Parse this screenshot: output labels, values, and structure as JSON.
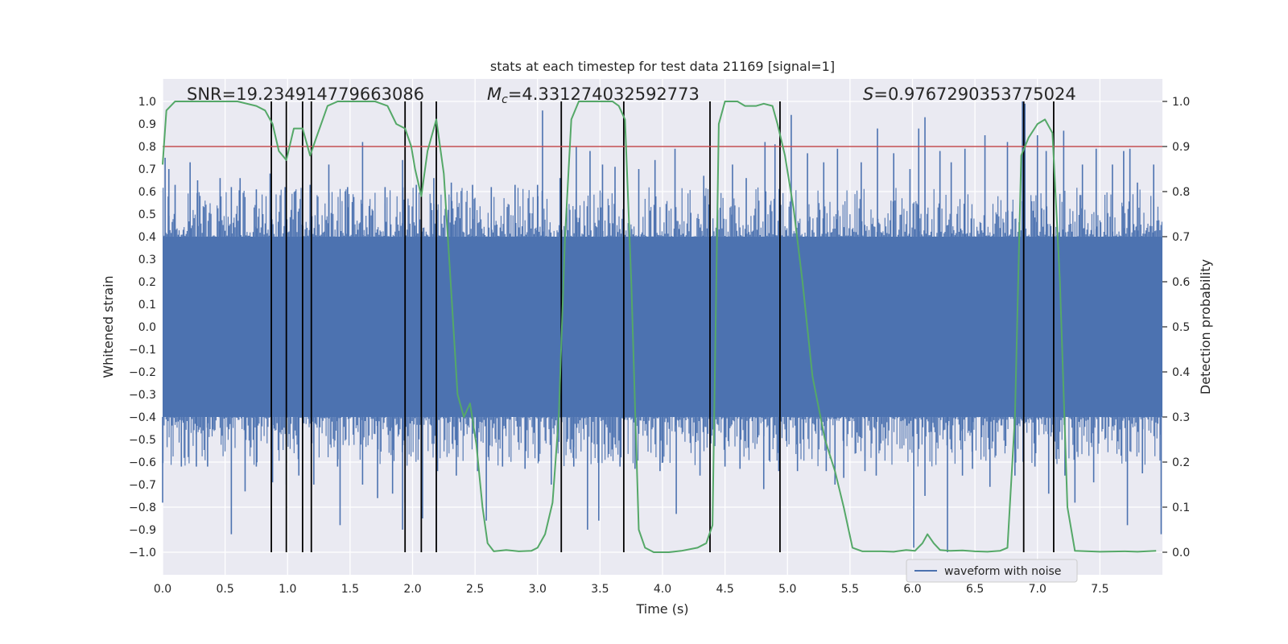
{
  "chart_data": {
    "type": "line",
    "title": "stats at each timestep for test data 21169 [signal=1]",
    "xlabel": "Time (s)",
    "ylabel_left": "Whitened strain",
    "ylabel_right": "Detection probability",
    "xlim": [
      0.0,
      8.0
    ],
    "ylim_left": [
      -1.1,
      1.1
    ],
    "ylim_right": [
      -0.05,
      1.05
    ],
    "x_ticks": [
      "0.0",
      "0.5",
      "1.0",
      "1.5",
      "2.0",
      "2.5",
      "3.0",
      "3.5",
      "4.0",
      "4.5",
      "5.0",
      "5.5",
      "6.0",
      "6.5",
      "7.0",
      "7.5"
    ],
    "y_ticks_left": [
      "1.0",
      "0.9",
      "0.8",
      "0.7",
      "0.6",
      "0.5",
      "0.4",
      "0.3",
      "0.2",
      "0.1",
      "0.0",
      "−0.1",
      "−0.2",
      "−0.3",
      "−0.4",
      "−0.5",
      "−0.6",
      "−0.7",
      "−0.8",
      "−0.9",
      "−1.0"
    ],
    "y_ticks_right": [
      "1.0",
      "0.9",
      "0.8",
      "0.7",
      "0.6",
      "0.5",
      "0.4",
      "0.3",
      "0.2",
      "0.1",
      "0.0"
    ],
    "stats": {
      "snr_label": "SNR=19.234914779663086",
      "mc_symbol": "M",
      "mc_sub": "c",
      "mc_value": "=4.331274032592773",
      "s_symbol": "S",
      "s_value": "=0.9767290353775024"
    },
    "legend": {
      "label": "waveform with noise",
      "placement": "lower-right"
    },
    "threshold": {
      "value": 0.9,
      "axis": "right",
      "color": "#c44e52"
    },
    "vlines_x": [
      0.87,
      0.99,
      1.12,
      1.19,
      1.94,
      2.07,
      2.19,
      3.19,
      3.69,
      4.38,
      4.94,
      6.89,
      7.13
    ],
    "waveform": {
      "name": "waveform with noise",
      "color": "#4c72b0",
      "noise_band": [
        -0.4,
        0.4
      ],
      "spike_up": [
        [
          0.02,
          0.75
        ],
        [
          0.05,
          0.7
        ],
        [
          0.1,
          0.63
        ],
        [
          0.22,
          0.73
        ],
        [
          0.28,
          0.65
        ],
        [
          0.46,
          0.66
        ],
        [
          0.55,
          0.62
        ],
        [
          0.62,
          0.66
        ],
        [
          0.75,
          0.61
        ],
        [
          0.86,
          0.68
        ],
        [
          0.98,
          0.62
        ],
        [
          1.18,
          0.63
        ],
        [
          1.33,
          0.72
        ],
        [
          1.48,
          0.62
        ],
        [
          1.6,
          0.82
        ],
        [
          1.78,
          0.62
        ],
        [
          1.92,
          0.74
        ],
        [
          2.03,
          0.63
        ],
        [
          2.17,
          0.66
        ],
        [
          2.31,
          0.64
        ],
        [
          2.48,
          0.63
        ],
        [
          2.63,
          0.62
        ],
        [
          2.82,
          0.63
        ],
        [
          3.0,
          0.63
        ],
        [
          3.04,
          0.96
        ],
        [
          3.18,
          0.66
        ],
        [
          3.31,
          0.8
        ],
        [
          3.42,
          0.78
        ],
        [
          3.52,
          0.72
        ],
        [
          3.62,
          0.71
        ],
        [
          3.81,
          0.7
        ],
        [
          3.94,
          0.74
        ],
        [
          4.1,
          0.79
        ],
        [
          4.33,
          0.67
        ],
        [
          4.56,
          0.72
        ],
        [
          4.67,
          0.66
        ],
        [
          4.82,
          0.82
        ],
        [
          4.9,
          0.81
        ],
        [
          5.03,
          0.94
        ],
        [
          5.16,
          0.77
        ],
        [
          5.29,
          0.73
        ],
        [
          5.4,
          0.79
        ],
        [
          5.59,
          0.73
        ],
        [
          5.72,
          0.88
        ],
        [
          5.85,
          0.77
        ],
        [
          5.98,
          0.7
        ],
        [
          6.05,
          0.88
        ],
        [
          6.1,
          0.93
        ],
        [
          6.22,
          0.78
        ],
        [
          6.31,
          0.73
        ],
        [
          6.42,
          0.79
        ],
        [
          6.58,
          0.85
        ],
        [
          6.76,
          0.82
        ],
        [
          6.88,
          1.0
        ],
        [
          6.9,
          0.99
        ],
        [
          7.0,
          0.85
        ],
        [
          7.07,
          0.78
        ],
        [
          7.21,
          0.87
        ],
        [
          7.36,
          0.72
        ],
        [
          7.47,
          0.79
        ],
        [
          7.6,
          0.72
        ],
        [
          7.69,
          0.78
        ],
        [
          7.74,
          0.79
        ],
        [
          7.8,
          0.64
        ],
        [
          7.93,
          0.72
        ]
      ],
      "spike_down": [
        [
          0.0,
          -0.78
        ],
        [
          0.15,
          -0.62
        ],
        [
          0.27,
          -0.62
        ],
        [
          0.36,
          -0.62
        ],
        [
          0.55,
          -0.92
        ],
        [
          0.66,
          -0.73
        ],
        [
          0.75,
          -0.62
        ],
        [
          0.88,
          -0.69
        ],
        [
          0.99,
          -0.7
        ],
        [
          1.09,
          -0.66
        ],
        [
          1.21,
          -0.7
        ],
        [
          1.4,
          -0.62
        ],
        [
          1.42,
          -0.88
        ],
        [
          1.6,
          -0.7
        ],
        [
          1.72,
          -0.76
        ],
        [
          1.84,
          -0.74
        ],
        [
          1.92,
          -0.9
        ],
        [
          1.94,
          -0.78
        ],
        [
          2.08,
          -0.85
        ],
        [
          2.2,
          -0.64
        ],
        [
          2.35,
          -0.66
        ],
        [
          2.52,
          -0.64
        ],
        [
          2.59,
          -0.86
        ],
        [
          2.72,
          -0.62
        ],
        [
          2.9,
          -0.63
        ],
        [
          3.11,
          -0.7
        ],
        [
          3.29,
          -0.62
        ],
        [
          3.4,
          -0.9
        ],
        [
          3.49,
          -0.86
        ],
        [
          3.66,
          -0.62
        ],
        [
          3.78,
          -0.63
        ],
        [
          3.98,
          -0.64
        ],
        [
          4.11,
          -0.83
        ],
        [
          4.3,
          -0.66
        ],
        [
          4.5,
          -0.62
        ],
        [
          4.62,
          -0.63
        ],
        [
          4.81,
          -0.72
        ],
        [
          4.93,
          -0.64
        ],
        [
          5.08,
          -0.64
        ],
        [
          5.31,
          -0.64
        ],
        [
          5.38,
          -0.7
        ],
        [
          5.45,
          -0.67
        ],
        [
          5.62,
          -0.64
        ],
        [
          5.71,
          -0.66
        ],
        [
          6.01,
          -0.98
        ],
        [
          6.1,
          -0.75
        ],
        [
          6.28,
          -1.0
        ],
        [
          6.4,
          -0.66
        ],
        [
          6.48,
          -0.63
        ],
        [
          6.62,
          -0.71
        ],
        [
          6.82,
          -0.66
        ],
        [
          6.98,
          -0.62
        ],
        [
          7.09,
          -0.74
        ],
        [
          7.22,
          -0.66
        ],
        [
          7.3,
          -0.78
        ],
        [
          7.45,
          -0.69
        ],
        [
          7.72,
          -0.88
        ],
        [
          7.84,
          -0.65
        ],
        [
          7.99,
          -0.92
        ]
      ]
    },
    "probability": {
      "name": "detection probability",
      "color": "#55a868",
      "axis": "right",
      "points": [
        [
          0.0,
          0.86
        ],
        [
          0.03,
          0.98
        ],
        [
          0.1,
          1.0
        ],
        [
          0.3,
          1.0
        ],
        [
          0.6,
          1.0
        ],
        [
          0.75,
          0.99
        ],
        [
          0.82,
          0.98
        ],
        [
          0.88,
          0.95
        ],
        [
          0.93,
          0.89
        ],
        [
          0.99,
          0.87
        ],
        [
          1.05,
          0.94
        ],
        [
          1.12,
          0.94
        ],
        [
          1.18,
          0.88
        ],
        [
          1.23,
          0.92
        ],
        [
          1.32,
          0.99
        ],
        [
          1.4,
          1.0
        ],
        [
          1.7,
          1.0
        ],
        [
          1.8,
          0.99
        ],
        [
          1.87,
          0.95
        ],
        [
          1.94,
          0.94
        ],
        [
          1.99,
          0.9
        ],
        [
          2.02,
          0.85
        ],
        [
          2.07,
          0.79
        ],
        [
          2.12,
          0.89
        ],
        [
          2.19,
          0.96
        ],
        [
          2.25,
          0.84
        ],
        [
          2.3,
          0.62
        ],
        [
          2.36,
          0.35
        ],
        [
          2.41,
          0.3
        ],
        [
          2.46,
          0.33
        ],
        [
          2.51,
          0.24
        ],
        [
          2.56,
          0.1
        ],
        [
          2.6,
          0.02
        ],
        [
          2.65,
          0.002
        ],
        [
          2.75,
          0.005
        ],
        [
          2.85,
          0.002
        ],
        [
          2.95,
          0.003
        ],
        [
          3.0,
          0.01
        ],
        [
          3.06,
          0.04
        ],
        [
          3.12,
          0.11
        ],
        [
          3.17,
          0.3
        ],
        [
          3.22,
          0.7
        ],
        [
          3.27,
          0.96
        ],
        [
          3.33,
          1.0
        ],
        [
          3.5,
          1.0
        ],
        [
          3.6,
          1.0
        ],
        [
          3.65,
          0.99
        ],
        [
          3.7,
          0.96
        ],
        [
          3.75,
          0.6
        ],
        [
          3.81,
          0.05
        ],
        [
          3.86,
          0.01
        ],
        [
          3.93,
          0.0
        ],
        [
          4.05,
          0.0
        ],
        [
          4.15,
          0.003
        ],
        [
          4.28,
          0.01
        ],
        [
          4.35,
          0.02
        ],
        [
          4.4,
          0.06
        ],
        [
          4.45,
          0.95
        ],
        [
          4.5,
          1.0
        ],
        [
          4.6,
          1.0
        ],
        [
          4.66,
          0.99
        ],
        [
          4.75,
          0.99
        ],
        [
          4.81,
          0.995
        ],
        [
          4.88,
          0.99
        ],
        [
          4.92,
          0.95
        ],
        [
          4.98,
          0.88
        ],
        [
          5.05,
          0.76
        ],
        [
          5.12,
          0.6
        ],
        [
          5.2,
          0.39
        ],
        [
          5.3,
          0.25
        ],
        [
          5.38,
          0.18
        ],
        [
          5.45,
          0.1
        ],
        [
          5.52,
          0.01
        ],
        [
          5.6,
          0.002
        ],
        [
          5.75,
          0.002
        ],
        [
          5.85,
          0.001
        ],
        [
          5.95,
          0.005
        ],
        [
          6.02,
          0.003
        ],
        [
          6.08,
          0.02
        ],
        [
          6.12,
          0.04
        ],
        [
          6.17,
          0.02
        ],
        [
          6.22,
          0.005
        ],
        [
          6.3,
          0.003
        ],
        [
          6.4,
          0.004
        ],
        [
          6.5,
          0.002
        ],
        [
          6.6,
          0.001
        ],
        [
          6.7,
          0.003
        ],
        [
          6.76,
          0.01
        ],
        [
          6.82,
          0.3
        ],
        [
          6.87,
          0.88
        ],
        [
          6.93,
          0.92
        ],
        [
          7.0,
          0.95
        ],
        [
          7.06,
          0.96
        ],
        [
          7.12,
          0.93
        ],
        [
          7.18,
          0.6
        ],
        [
          7.24,
          0.1
        ],
        [
          7.3,
          0.003
        ],
        [
          7.5,
          0.001
        ],
        [
          7.7,
          0.002
        ],
        [
          7.8,
          0.001
        ],
        [
          7.95,
          0.003
        ]
      ]
    }
  }
}
